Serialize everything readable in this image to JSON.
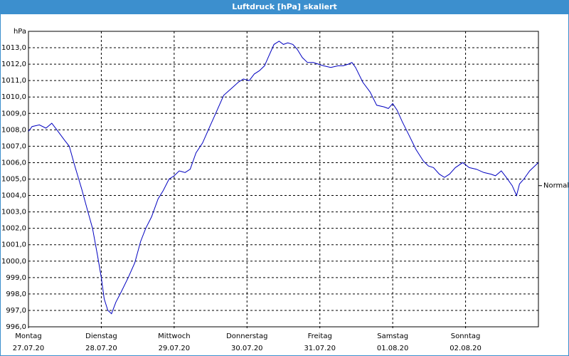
{
  "chart_data": {
    "type": "line",
    "title": "Luftdruck [hPa] skaliert",
    "x": [
      0,
      0.05,
      0.15,
      0.24,
      0.32,
      0.39,
      0.49,
      0.56,
      0.63,
      0.73,
      0.81,
      0.88,
      0.95,
      1.0,
      1.04,
      1.09,
      1.14,
      1.2,
      1.27,
      1.37,
      1.46,
      1.54,
      1.61,
      1.69,
      1.78,
      1.85,
      1.93,
      2.0,
      2.07,
      2.15,
      2.22,
      2.3,
      2.39,
      2.49,
      2.59,
      2.68,
      2.78,
      2.88,
      2.95,
      3.03,
      3.1,
      3.17,
      3.24,
      3.3,
      3.37,
      3.44,
      3.5,
      3.56,
      3.63,
      3.69,
      3.76,
      3.83,
      3.91,
      3.98,
      4.05,
      4.15,
      4.25,
      4.32,
      4.39,
      4.44,
      4.49,
      4.59,
      4.69,
      4.78,
      4.88,
      4.94,
      5.0,
      5.06,
      5.13,
      5.22,
      5.32,
      5.42,
      5.49,
      5.56,
      5.64,
      5.71,
      5.78,
      5.86,
      5.96,
      6.05,
      6.15,
      6.25,
      6.35,
      6.41,
      6.49,
      6.56,
      6.64,
      6.7,
      6.74,
      6.8,
      6.88,
      6.95,
      7.0
    ],
    "series": [
      {
        "color": "#0000c0",
        "values": [
          1007.9,
          1008.2,
          1008.3,
          1008.1,
          1008.4,
          1008.0,
          1007.4,
          1007.0,
          1005.9,
          1004.4,
          1003.1,
          1002.0,
          1000.3,
          999.0,
          997.7,
          997.0,
          996.8,
          997.5,
          998.1,
          999.0,
          999.9,
          1001.2,
          1002.0,
          1002.7,
          1003.8,
          1004.3,
          1005.0,
          1005.2,
          1005.5,
          1005.4,
          1005.6,
          1006.6,
          1007.2,
          1008.2,
          1009.2,
          1010.1,
          1010.5,
          1010.9,
          1011.1,
          1011.0,
          1011.4,
          1011.6,
          1011.9,
          1012.5,
          1013.2,
          1013.4,
          1013.2,
          1013.3,
          1013.2,
          1012.9,
          1012.4,
          1012.1,
          1012.1,
          1012.0,
          1011.9,
          1011.8,
          1011.9,
          1011.9,
          1012.0,
          1012.1,
          1011.8,
          1010.9,
          1010.3,
          1009.5,
          1009.4,
          1009.3,
          1009.6,
          1009.2,
          1008.5,
          1007.7,
          1006.8,
          1006.1,
          1005.8,
          1005.7,
          1005.3,
          1005.1,
          1005.3,
          1005.7,
          1006.0,
          1005.7,
          1005.6,
          1005.4,
          1005.3,
          1005.2,
          1005.5,
          1005.1,
          1004.6,
          1004.0,
          1004.7,
          1005.0,
          1005.5,
          1005.8,
          1006.0
        ]
      }
    ],
    "xlim": [
      0,
      7
    ],
    "xticks": [
      {
        "value": 0,
        "label": "Montag"
      },
      {
        "value": 1,
        "label": "Dienstag"
      },
      {
        "value": 2,
        "label": "Mittwoch"
      },
      {
        "value": 3,
        "label": "Donnerstag"
      },
      {
        "value": 4,
        "label": "Freitag"
      },
      {
        "value": 5,
        "label": "Samstag"
      },
      {
        "value": 6,
        "label": "Sonntag"
      }
    ],
    "xtick_dates": [
      "27.07.20",
      "28.07.20",
      "29.07.20",
      "30.07.20",
      "31.07.20",
      "01.08.20",
      "02.08.20"
    ],
    "ylim": [
      996,
      1014
    ],
    "yticks": [
      {
        "value": 996,
        "label": "996,0"
      },
      {
        "value": 997,
        "label": "997,0"
      },
      {
        "value": 998,
        "label": "998,0"
      },
      {
        "value": 999,
        "label": "999,0"
      },
      {
        "value": 1000,
        "label": "1000,0"
      },
      {
        "value": 1001,
        "label": "1001,0"
      },
      {
        "value": 1002,
        "label": "1002,0"
      },
      {
        "value": 1003,
        "label": "1003,0"
      },
      {
        "value": 1004,
        "label": "1004,0"
      },
      {
        "value": 1005,
        "label": "1005,0"
      },
      {
        "value": 1006,
        "label": "1006,0"
      },
      {
        "value": 1007,
        "label": "1007,0"
      },
      {
        "value": 1008,
        "label": "1008,0"
      },
      {
        "value": 1009,
        "label": "1009,0"
      },
      {
        "value": 1010,
        "label": "1010,0"
      },
      {
        "value": 1011,
        "label": "1011,0"
      },
      {
        "value": 1012,
        "label": "1012,0"
      },
      {
        "value": 1013,
        "label": "1013,0"
      },
      {
        "value": 1014,
        "label": "hPa"
      }
    ],
    "annotation": {
      "text": "Normal",
      "y": 1004.6
    },
    "grid": true
  }
}
